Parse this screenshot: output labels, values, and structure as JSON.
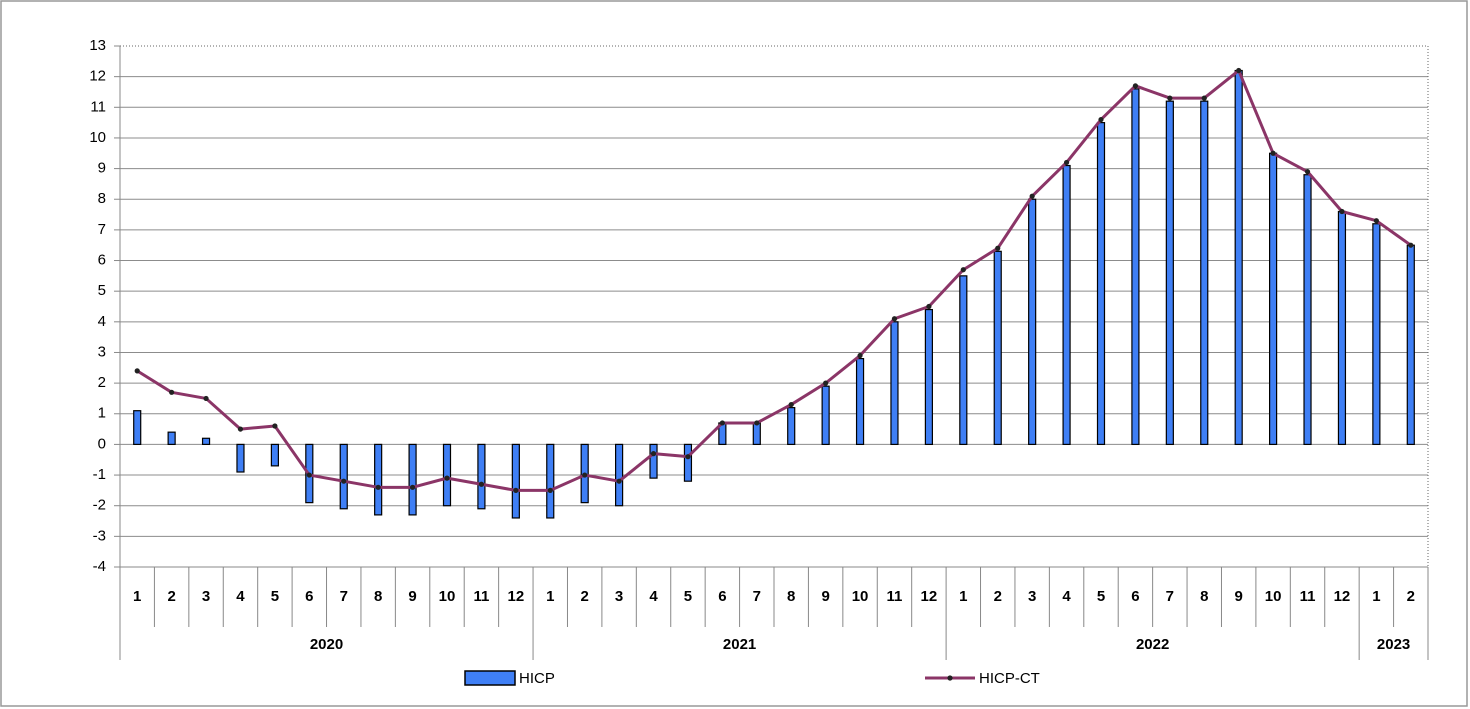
{
  "chart_data": {
    "type": "bar-line",
    "categories": [
      "1",
      "2",
      "3",
      "4",
      "5",
      "6",
      "7",
      "8",
      "9",
      "10",
      "11",
      "12",
      "1",
      "2",
      "3",
      "4",
      "5",
      "6",
      "7",
      "8",
      "9",
      "10",
      "11",
      "12",
      "1",
      "2",
      "3",
      "4",
      "5",
      "6",
      "7",
      "8",
      "9",
      "10",
      "11",
      "12",
      "1",
      "2"
    ],
    "groups": [
      {
        "label": "2020",
        "count": 12
      },
      {
        "label": "2021",
        "count": 12
      },
      {
        "label": "2022",
        "count": 12
      },
      {
        "label": "2023",
        "count": 2
      }
    ],
    "series": [
      {
        "name": "HICP",
        "type": "bar",
        "color": "#3f7ff5",
        "values": [
          1.1,
          0.4,
          0.2,
          -0.9,
          -0.7,
          -1.9,
          -2.1,
          -2.3,
          -2.3,
          -2.0,
          -2.1,
          -2.4,
          -2.4,
          -1.9,
          -2.0,
          -1.1,
          -1.2,
          0.7,
          0.7,
          1.2,
          1.9,
          2.8,
          4.0,
          4.4,
          5.5,
          6.3,
          8.0,
          9.1,
          10.5,
          11.6,
          11.2,
          11.2,
          12.2,
          9.5,
          8.8,
          7.6,
          7.2,
          6.5
        ]
      },
      {
        "name": "HICP-CT",
        "type": "line",
        "color": "#8b3567",
        "values": [
          2.4,
          1.7,
          1.5,
          0.5,
          0.6,
          -1.0,
          -1.2,
          -1.4,
          -1.4,
          -1.1,
          -1.3,
          -1.5,
          -1.5,
          -1.0,
          -1.2,
          -0.3,
          -0.4,
          0.7,
          0.7,
          1.3,
          2.0,
          2.9,
          4.1,
          4.5,
          5.7,
          6.4,
          8.1,
          9.2,
          10.6,
          11.7,
          11.3,
          11.3,
          12.2,
          9.5,
          8.9,
          7.6,
          7.3,
          6.5
        ]
      }
    ],
    "ylim": [
      -4,
      13
    ],
    "yticks": [
      -4,
      -3,
      -2,
      -1,
      0,
      1,
      2,
      3,
      4,
      5,
      6,
      7,
      8,
      9,
      10,
      11,
      12,
      13
    ],
    "grid": true
  }
}
